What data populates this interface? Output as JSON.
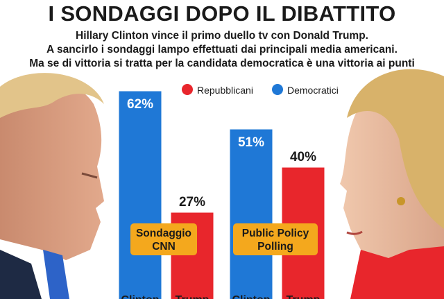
{
  "header": {
    "title": "I SONDAGGI DOPO IL DIBATTITO",
    "subtitle_lines": [
      "Hillary Clinton vince il primo duello tv con Donald Trump.",
      "A sancirlo i sondaggi lampo effettuati dai principali media americani.",
      "Ma se di vittoria si tratta per la candidata democratica è una vittoria ai punti"
    ]
  },
  "chart_data": {
    "type": "bar",
    "title": "",
    "xlabel": "",
    "ylabel": "",
    "ylim": [
      0,
      70
    ],
    "legend": [
      {
        "name": "Repubblicani",
        "color": "#e8262c"
      },
      {
        "name": "Democratici",
        "color": "#1f78d6"
      }
    ],
    "groups": [
      {
        "label": "Sondaggio CNN",
        "bars": [
          {
            "category": "Clinton",
            "party": "Democratici",
            "value": 62,
            "label": "62%"
          },
          {
            "category": "Trump",
            "party": "Repubblicani",
            "value": 27,
            "label": "27%"
          }
        ]
      },
      {
        "label": "Public Policy Polling",
        "bars": [
          {
            "category": "Clinton",
            "party": "Democratici",
            "value": 51,
            "label": "51%"
          },
          {
            "category": "Trump",
            "party": "Repubblicani",
            "value": 40,
            "label": "40%"
          }
        ]
      }
    ],
    "badge_color": "#f4a81d",
    "grid": false,
    "legend_position": "top-right"
  },
  "photos": {
    "left": "trump-portrait",
    "right": "clinton-portrait"
  }
}
